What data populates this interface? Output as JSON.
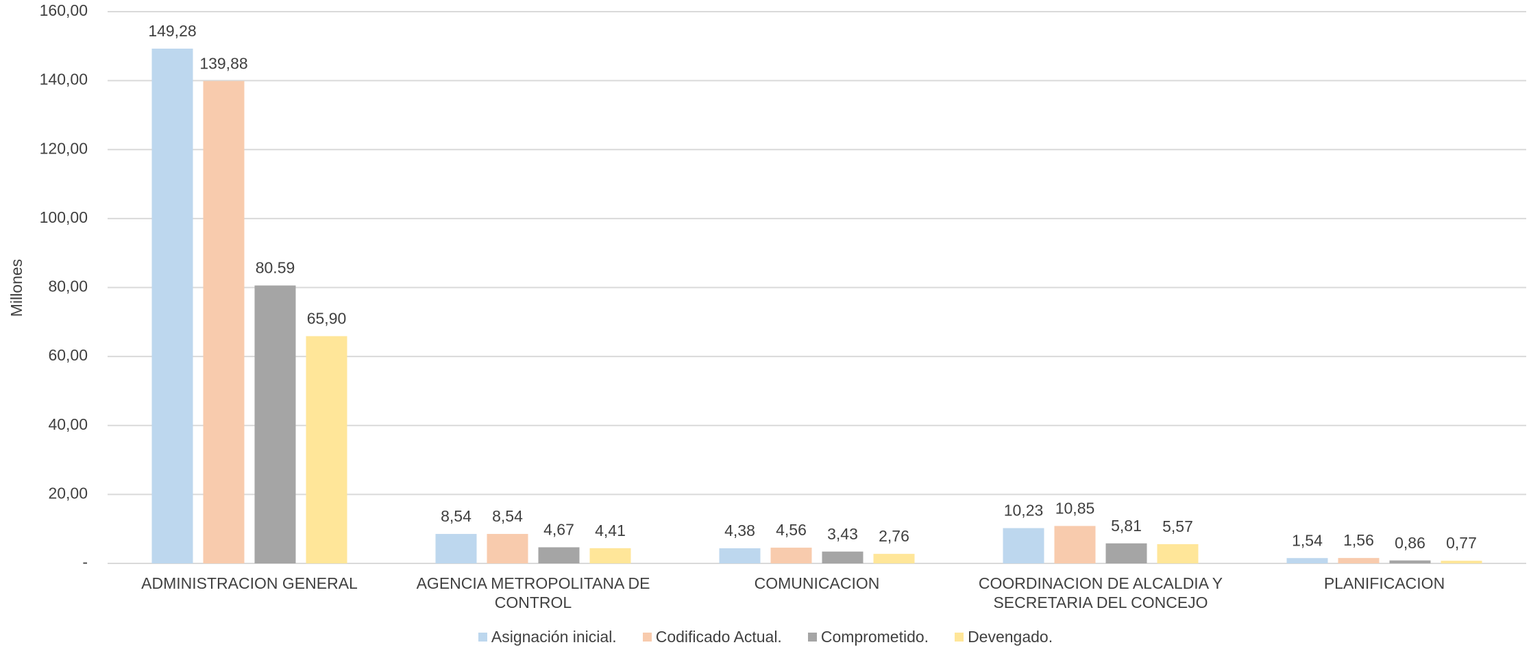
{
  "chart_data": {
    "type": "bar",
    "y_axis_label": "Millones",
    "categories": [
      "ADMINISTRACION GENERAL",
      "AGENCIA METROPOLITANA DE CONTROL",
      "COMUNICACION",
      "COORDINACION DE ALCALDIA Y SECRETARIA DEL CONCEJO",
      "PLANIFICACION"
    ],
    "series": [
      {
        "name": "Asignación inicial.",
        "color": "#bdd7ee",
        "values": [
          149.28,
          8.54,
          4.38,
          10.23,
          1.54
        ],
        "value_labels": [
          "149,28",
          "8,54",
          "4,38",
          "10,23",
          "1,54"
        ]
      },
      {
        "name": "Codificado Actual.",
        "color": "#f8cbad",
        "values": [
          139.88,
          8.54,
          4.56,
          10.85,
          1.56
        ],
        "value_labels": [
          "139,88",
          "8,54",
          "4,56",
          "10,85",
          "1,56"
        ]
      },
      {
        "name": "Comprometido.",
        "color": "#a5a5a5",
        "values": [
          80.59,
          4.67,
          3.43,
          5.81,
          0.86
        ],
        "value_labels": [
          "80.59",
          "4,67",
          "3,43",
          "5,81",
          "0,86"
        ]
      },
      {
        "name": "Devengado.",
        "color": "#ffe699",
        "values": [
          65.9,
          4.41,
          2.76,
          5.57,
          0.77
        ],
        "value_labels": [
          "65,90",
          "4,41",
          "2,76",
          "5,57",
          "0,77"
        ]
      }
    ],
    "ylim": [
      0,
      160
    ],
    "yticks": [
      {
        "value": 0,
        "label": "-"
      },
      {
        "value": 20,
        "label": "20,00"
      },
      {
        "value": 40,
        "label": "40,00"
      },
      {
        "value": 60,
        "label": "60,00"
      },
      {
        "value": 80,
        "label": "80,00"
      },
      {
        "value": 100,
        "label": "100,00"
      },
      {
        "value": 120,
        "label": "120,00"
      },
      {
        "value": 140,
        "label": "140,00"
      },
      {
        "value": 160,
        "label": "160,00"
      }
    ],
    "grid": true
  }
}
